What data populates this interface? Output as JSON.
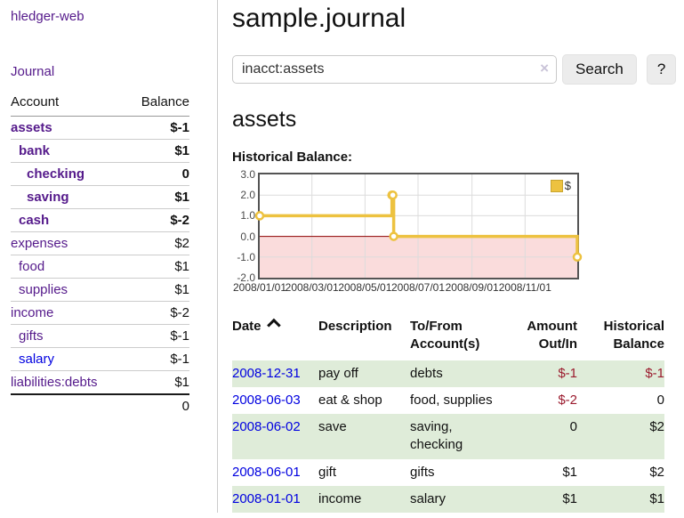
{
  "colors": {
    "link_purple": "#551a8b",
    "link_blue": "#0000e0",
    "negative_strong": "#9b1b2e",
    "negative_soft": "#c2707c",
    "row_green": "#dfecd9",
    "button_gray": "#ececec",
    "chart_line_yellow": "#edc240",
    "chart_negative_fill": "#fadcdc",
    "chart_zero_line": "#8b0000",
    "chart_border": "#545454",
    "chart_grid": "#dcdcdc"
  },
  "sidebar": {
    "brand": "hledger-web",
    "journal_link": "Journal",
    "accounts": {
      "account_header": "Account",
      "balance_header": "Balance",
      "rows": [
        {
          "label": "assets",
          "balance": "$-1",
          "level": 1,
          "bold": true,
          "balance_style": "neg-strong"
        },
        {
          "label": "bank",
          "balance": "$1",
          "level": 2,
          "bold": true,
          "balance_style": "pos"
        },
        {
          "label": "checking",
          "balance": "0",
          "level": 3,
          "bold": true,
          "balance_style": "pos"
        },
        {
          "label": "saving",
          "balance": "$1",
          "level": 3,
          "bold": true,
          "balance_style": "pos"
        },
        {
          "label": "cash",
          "balance": "$-2",
          "level": 2,
          "bold": true,
          "balance_style": "neg-strong"
        },
        {
          "label": "expenses",
          "balance": "$2",
          "level": 1,
          "bold": false,
          "balance_style": "pos"
        },
        {
          "label": "food",
          "balance": "$1",
          "level": 2,
          "bold": false,
          "balance_style": "pos"
        },
        {
          "label": "supplies",
          "balance": "$1",
          "level": 2,
          "bold": false,
          "balance_style": "pos"
        },
        {
          "label": "income",
          "balance": "$-2",
          "level": 1,
          "bold": false,
          "balance_style": "neg-soft"
        },
        {
          "label": "gifts",
          "balance": "$-1",
          "level": 2,
          "bold": false,
          "balance_style": "neg-soft"
        },
        {
          "label": "salary",
          "balance": "$-1",
          "level": 2,
          "bold": false,
          "balance_style": "neg-soft",
          "link_color": "blue"
        },
        {
          "label": "liabilities:debts",
          "balance": "$1",
          "level": 1,
          "bold": false,
          "balance_style": "pos"
        }
      ],
      "total": "0"
    }
  },
  "main": {
    "title": "sample.journal",
    "search": {
      "value": "inacct:assets",
      "clear_icon": "×",
      "button_label": "Search",
      "help_label": "?"
    },
    "account_heading": "assets",
    "chart_title": "Historical Balance:"
  },
  "chart_data": {
    "type": "line",
    "title": "Historical Balance:",
    "step": true,
    "series": [
      {
        "name": "$",
        "color": "#edc240",
        "points": [
          [
            "2008-01-01",
            1
          ],
          [
            "2008-06-01",
            2
          ],
          [
            "2008-06-02",
            2
          ],
          [
            "2008-06-03",
            0
          ],
          [
            "2008-12-31",
            -1
          ]
        ]
      }
    ],
    "x_range": [
      "2008-01-01",
      "2008-12-31"
    ],
    "x_ticks": [
      "2008/01/01",
      "2008/03/01",
      "2008/05/01",
      "2008/07/01",
      "2008/09/01",
      "2008/11/01"
    ],
    "y_ticks": [
      3.0,
      2.0,
      1.0,
      0.0,
      -1.0,
      -2.0
    ],
    "ylim": [
      -2,
      3
    ],
    "grid": true,
    "legend": {
      "label": "$",
      "position": "top-right"
    },
    "negative_region_color": "#fadcdc",
    "zero_line_color": "#8b0000"
  },
  "register": {
    "headers": [
      {
        "label": "Date",
        "align": "left",
        "sort_caret": true
      },
      {
        "label": "Description",
        "align": "left",
        "sort_caret": false
      },
      {
        "label": "To/From Account(s)",
        "align": "left",
        "sort_caret": false
      },
      {
        "label": "Amount Out/In",
        "align": "right",
        "sort_caret": false
      },
      {
        "label": "Historical Balance",
        "align": "right",
        "sort_caret": false
      }
    ],
    "rows": [
      {
        "date": "2008-12-31",
        "description": "pay off",
        "accounts": "debts",
        "amount": "$-1",
        "amount_neg": true,
        "balance": "$-1",
        "balance_neg": true,
        "green": true
      },
      {
        "date": "2008-06-03",
        "description": "eat & shop",
        "accounts": "food, supplies",
        "amount": "$-2",
        "amount_neg": true,
        "balance": "0",
        "balance_neg": false,
        "green": false
      },
      {
        "date": "2008-06-02",
        "description": "save",
        "accounts": "saving, checking",
        "amount": "0",
        "amount_neg": false,
        "balance": "$2",
        "balance_neg": false,
        "green": true
      },
      {
        "date": "2008-06-01",
        "description": "gift",
        "accounts": "gifts",
        "amount": "$1",
        "amount_neg": false,
        "balance": "$2",
        "balance_neg": false,
        "green": false
      },
      {
        "date": "2008-01-01",
        "description": "income",
        "accounts": "salary",
        "amount": "$1",
        "amount_neg": false,
        "balance": "$1",
        "balance_neg": false,
        "green": true
      }
    ]
  }
}
